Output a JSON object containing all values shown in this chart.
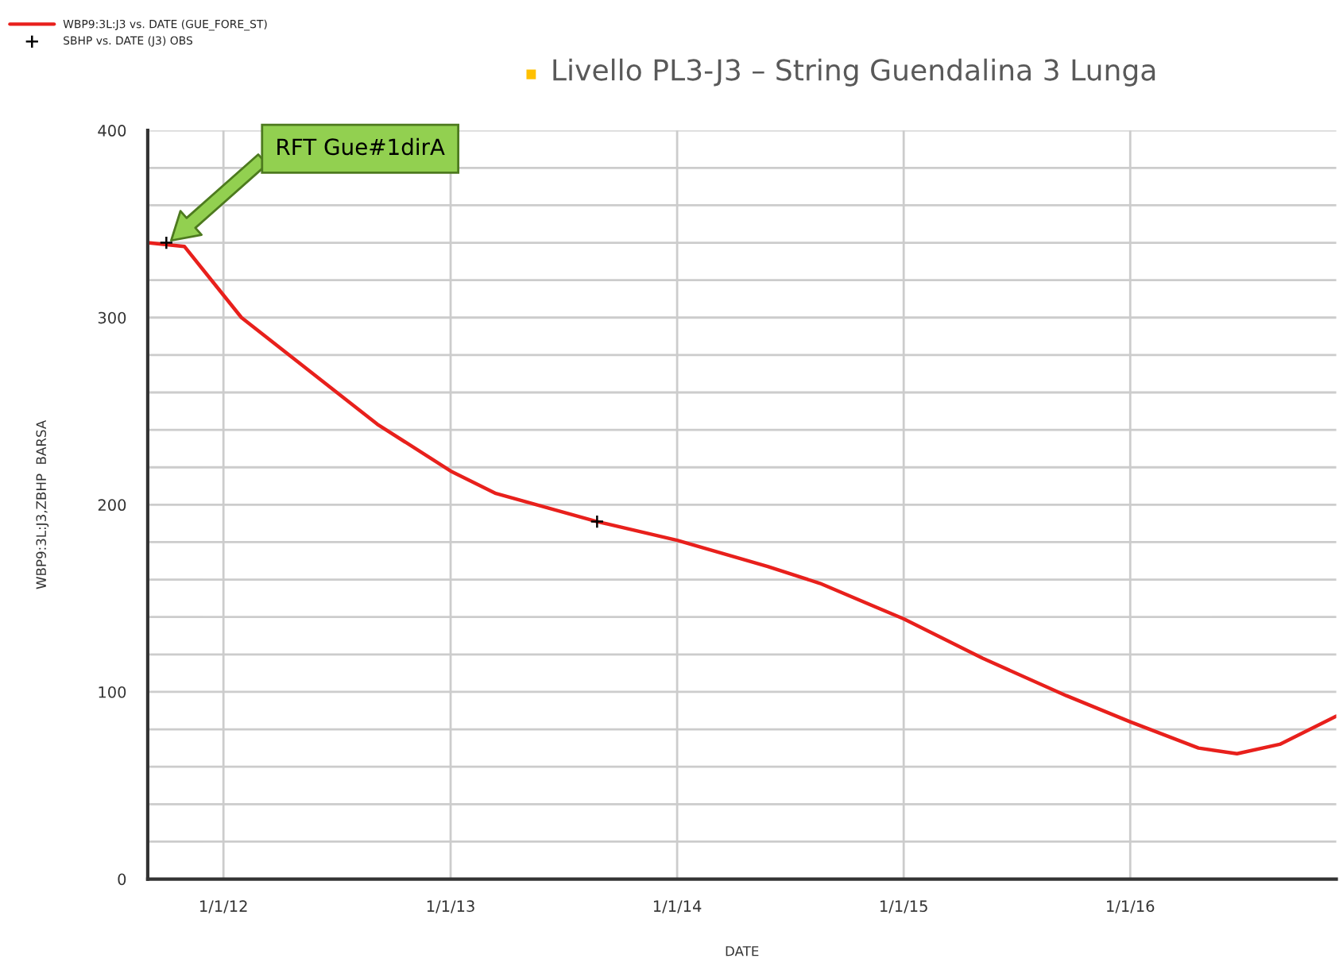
{
  "chart_data": {
    "type": "line",
    "title": "Livello PL3-J3 – String Guendalina 3 Lunga",
    "xlabel": "DATE",
    "ylabel": "WBP9:3L:J3,ZBHP  BARSA",
    "series": [
      {
        "name": "WBP9:3L:J3 vs. DATE (GUE_FORE_ST)",
        "color": "#e8201c",
        "marker": "none",
        "x": [
          "2011-09-01",
          "2011-10-30",
          "2012-01-01",
          "2012-01-30",
          "2012-09-05",
          "2013-01-01",
          "2013-03-15",
          "2013-08-25",
          "2014-01-01",
          "2014-05-27",
          "2014-08-19",
          "2015-01-01",
          "2015-05-08",
          "2015-09-20",
          "2016-01-01",
          "2016-04-20",
          "2016-06-21",
          "2016-08-29",
          "2016-11-28"
        ],
        "values": [
          340,
          338,
          312,
          300,
          243,
          218,
          206,
          191,
          181,
          167,
          158,
          139,
          118,
          98,
          84,
          70,
          67,
          72,
          87
        ]
      },
      {
        "name": "SBHP vs. DATE (J3) OBS",
        "type": "scatter",
        "color": "#000000",
        "marker": "cross",
        "x": [
          "2011-10-01",
          "2013-08-25"
        ],
        "values": [
          340,
          191
        ]
      }
    ],
    "xlim": [
      "2011-09-01",
      "2016-11-28"
    ],
    "xticks": [
      {
        "value": "2012-01-01",
        "label": "1/1/12"
      },
      {
        "value": "2013-01-01",
        "label": "1/1/13"
      },
      {
        "value": "2014-01-01",
        "label": "1/1/14"
      },
      {
        "value": "2015-01-01",
        "label": "1/1/15"
      },
      {
        "value": "2016-01-01",
        "label": "1/1/16"
      }
    ],
    "ylim": [
      0,
      400
    ],
    "yticks": [
      0,
      {
        "value": 20,
        "label": null
      },
      {
        "value": 40,
        "label": null
      },
      {
        "value": 60,
        "label": null
      },
      {
        "value": 80,
        "label": null
      },
      100,
      {
        "value": 120,
        "label": null
      },
      {
        "value": 140,
        "label": null
      },
      {
        "value": 160,
        "label": null
      },
      {
        "value": 180,
        "label": null
      },
      200,
      {
        "value": 220,
        "label": null
      },
      {
        "value": 240,
        "label": null
      },
      {
        "value": 260,
        "label": null
      },
      {
        "value": 280,
        "label": null
      },
      300,
      {
        "value": 320,
        "label": null
      },
      {
        "value": 340,
        "label": null
      },
      {
        "value": 360,
        "label": null
      },
      {
        "value": 380,
        "label": null
      },
      400
    ],
    "annotations": [
      "RFT Gue#1dirA"
    ],
    "grid": true,
    "legend": "top left"
  }
}
